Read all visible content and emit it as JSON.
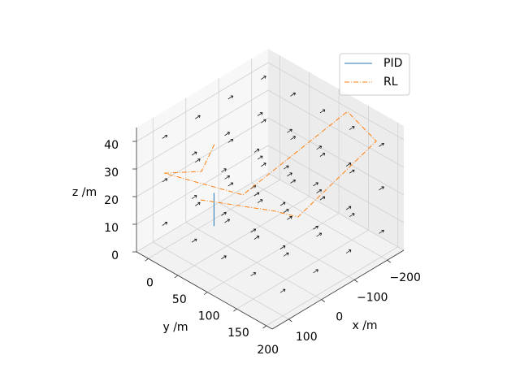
{
  "chart_data": {
    "type": "line3d",
    "xlabel": "x /m",
    "ylabel": "y /m",
    "zlabel": "z /m",
    "xlim": [
      -250,
      150
    ],
    "ylim": [
      -20,
      210
    ],
    "zlim": [
      0,
      45
    ],
    "xticks": [
      {
        "value": -200,
        "label": "−200"
      },
      {
        "value": -100,
        "label": "−100"
      },
      0,
      100
    ],
    "yticks": [
      0,
      50,
      100,
      150,
      200
    ],
    "zticks": [
      0,
      10,
      20,
      30,
      40
    ],
    "grid": true,
    "legend": "upper right",
    "series": [
      {
        "name": "PID",
        "color": "#1f77b4",
        "x": [
          40,
          40
        ],
        "y": [
          50,
          50
        ],
        "z": [
          10,
          22
        ]
      },
      {
        "name": "RL",
        "color": "#ff7f0e",
        "x": [
          -15,
          60,
          120,
          60,
          -240,
          -220,
          0,
          20,
          100
        ],
        "y": [
          20,
          40,
          10,
          110,
          120,
          180,
          170,
          140,
          60
        ],
        "z": [
          32,
          30,
          30,
          30,
          40,
          38,
          25,
          25,
          25
        ]
      }
    ]
  }
}
